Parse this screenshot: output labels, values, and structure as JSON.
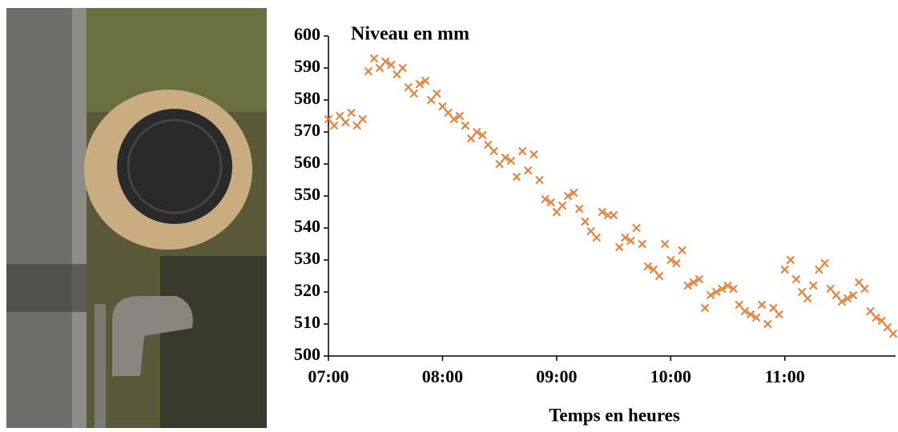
{
  "chart_data": {
    "type": "scatter",
    "title": "Niveau en mm",
    "xlabel": "Temps en heures",
    "color": "#ed7d31",
    "x": [
      7.0,
      7.05,
      7.1,
      7.15,
      7.2,
      7.25,
      7.3,
      7.35,
      7.4,
      7.45,
      7.5,
      7.55,
      7.6,
      7.65,
      7.7,
      7.75,
      7.8,
      7.85,
      7.9,
      7.95,
      8.0,
      8.05,
      8.1,
      8.15,
      8.2,
      8.25,
      8.3,
      8.35,
      8.4,
      8.45,
      8.5,
      8.55,
      8.6,
      8.65,
      8.7,
      8.75,
      8.8,
      8.85,
      8.9,
      8.95,
      9.0,
      9.05,
      9.1,
      9.15,
      9.2,
      9.25,
      9.3,
      9.35,
      9.4,
      9.45,
      9.5,
      9.55,
      9.6,
      9.65,
      9.7,
      9.75,
      9.8,
      9.85,
      9.9,
      9.95,
      10.0,
      10.05,
      10.1,
      10.15,
      10.2,
      10.25,
      10.3,
      10.35,
      10.4,
      10.45,
      10.5,
      10.55,
      10.6,
      10.65,
      10.7,
      10.75,
      10.8,
      10.85,
      10.9,
      10.95,
      11.0,
      11.05,
      11.1,
      11.15,
      11.2,
      11.25,
      11.3,
      11.35,
      11.4,
      11.45,
      11.5,
      11.55,
      11.6,
      11.65,
      11.7,
      11.75,
      11.8,
      11.85,
      11.9,
      11.95
    ],
    "values": [
      574,
      572,
      575,
      573,
      576,
      572,
      574,
      589,
      593,
      590,
      592,
      591,
      588,
      590,
      584,
      582,
      585,
      586,
      580,
      582,
      578,
      576,
      574,
      575,
      572,
      568,
      570,
      569,
      566,
      564,
      560,
      562,
      561,
      556,
      564,
      558,
      563,
      555,
      549,
      548,
      545,
      547,
      550,
      551,
      546,
      542,
      539,
      537,
      545,
      544,
      544,
      534,
      537,
      536,
      540,
      535,
      528,
      527,
      525,
      535,
      530,
      529,
      533,
      522,
      523,
      524,
      515,
      519,
      520,
      521,
      522,
      521,
      516,
      514,
      513,
      512,
      516,
      510,
      515,
      513,
      527,
      530,
      524,
      520,
      518,
      522,
      527,
      529,
      521,
      519,
      517,
      518,
      519,
      523,
      521,
      514,
      512,
      511,
      509,
      507
    ],
    "xlim": [
      7,
      11.95
    ],
    "xticks": [
      {
        "value": 7,
        "label": "07:00"
      },
      {
        "value": 8,
        "label": "08:00"
      },
      {
        "value": 9,
        "label": "09:00"
      },
      {
        "value": 10,
        "label": "10:00"
      },
      {
        "value": 11,
        "label": "11:00"
      }
    ],
    "ylim": [
      500,
      600
    ],
    "yticks": [
      500,
      510,
      520,
      530,
      540,
      550,
      560,
      570,
      580,
      590,
      600
    ]
  }
}
